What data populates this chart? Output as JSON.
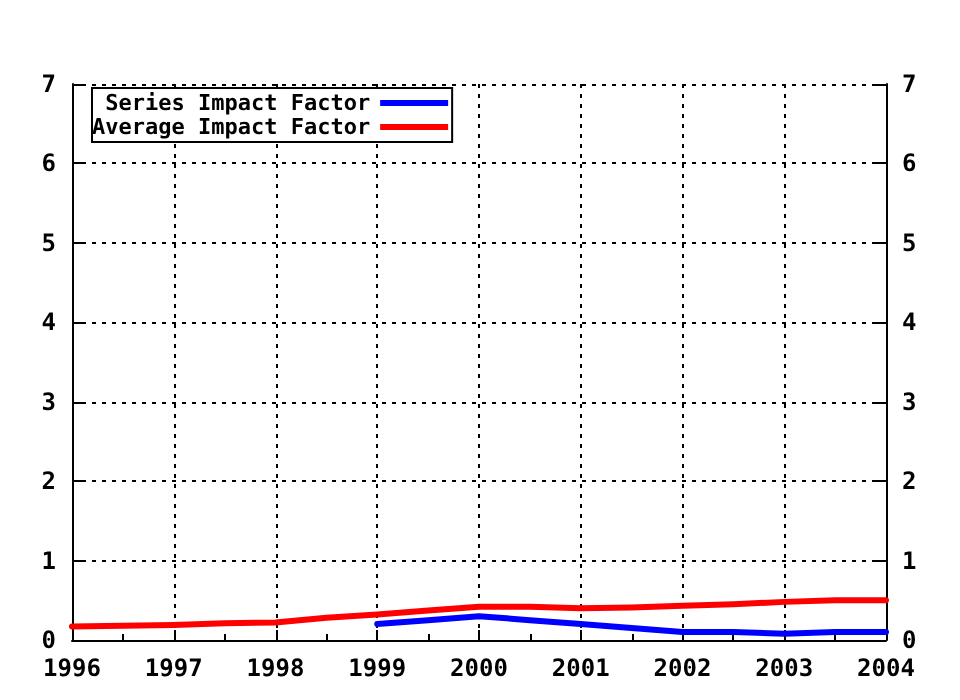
{
  "chart_data": {
    "type": "line",
    "x": [
      1996,
      1996.5,
      1997,
      1997.5,
      1998,
      1998.5,
      1999,
      1999.5,
      2000,
      2000.5,
      2001,
      2001.5,
      2002,
      2002.5,
      2003,
      2003.5,
      2004
    ],
    "series": [
      {
        "name": "Series Impact Factor",
        "color": "#0000ff",
        "values": [
          null,
          null,
          null,
          null,
          null,
          null,
          0.2,
          0.25,
          0.3,
          0.25,
          0.2,
          0.15,
          0.1,
          0.1,
          0.08,
          0.1,
          0.1
        ]
      },
      {
        "name": "Average Impact Factor",
        "color": "#ff0000",
        "values": [
          0.17,
          0.18,
          0.19,
          0.21,
          0.22,
          0.28,
          0.32,
          0.37,
          0.42,
          0.42,
          0.4,
          0.41,
          0.43,
          0.45,
          0.48,
          0.5,
          0.5
        ]
      }
    ],
    "xlim": [
      1996,
      2004
    ],
    "xticks": [
      1996,
      1997,
      1998,
      1999,
      2000,
      2001,
      2002,
      2003,
      2004
    ],
    "ylim": [
      0,
      7
    ],
    "yticks": [
      0,
      1,
      2,
      3,
      4,
      5,
      6,
      7
    ],
    "y2lim": [
      0,
      7
    ],
    "y2ticks": [
      0,
      1,
      2,
      3,
      4,
      5,
      6,
      7
    ],
    "grid": true,
    "legend": "top left",
    "marker": "none",
    "line_style": "solid"
  }
}
